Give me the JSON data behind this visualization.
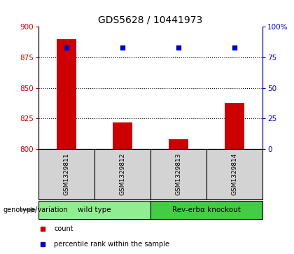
{
  "title": "GDS5628 / 10441973",
  "samples": [
    "GSM1329811",
    "GSM1329812",
    "GSM1329813",
    "GSM1329814"
  ],
  "counts": [
    890,
    822,
    808,
    838
  ],
  "percentiles": [
    83,
    83,
    83,
    83
  ],
  "left_ylim": [
    800,
    900
  ],
  "left_yticks": [
    800,
    825,
    850,
    875,
    900
  ],
  "right_ylim": [
    0,
    100
  ],
  "right_yticks": [
    0,
    25,
    50,
    75,
    100
  ],
  "right_yticklabels": [
    "0",
    "25",
    "50",
    "75",
    "100%"
  ],
  "bar_color": "#cc0000",
  "dot_color": "#0000cc",
  "groups": [
    {
      "label": "wild type",
      "spans": [
        0,
        2
      ],
      "color": "#90ee90"
    },
    {
      "label": "Rev-erbα knockout",
      "spans": [
        2,
        4
      ],
      "color": "#44cc44"
    }
  ],
  "genotype_label": "genotype/variation",
  "legend_items": [
    {
      "color": "#cc0000",
      "label": "count"
    },
    {
      "color": "#0000cc",
      "label": "percentile rank within the sample"
    }
  ],
  "title_fontsize": 10,
  "tick_fontsize": 7.5,
  "bar_width": 0.35,
  "sample_area_bg": "#d3d3d3",
  "grid_yticks": [
    825,
    850,
    875
  ]
}
